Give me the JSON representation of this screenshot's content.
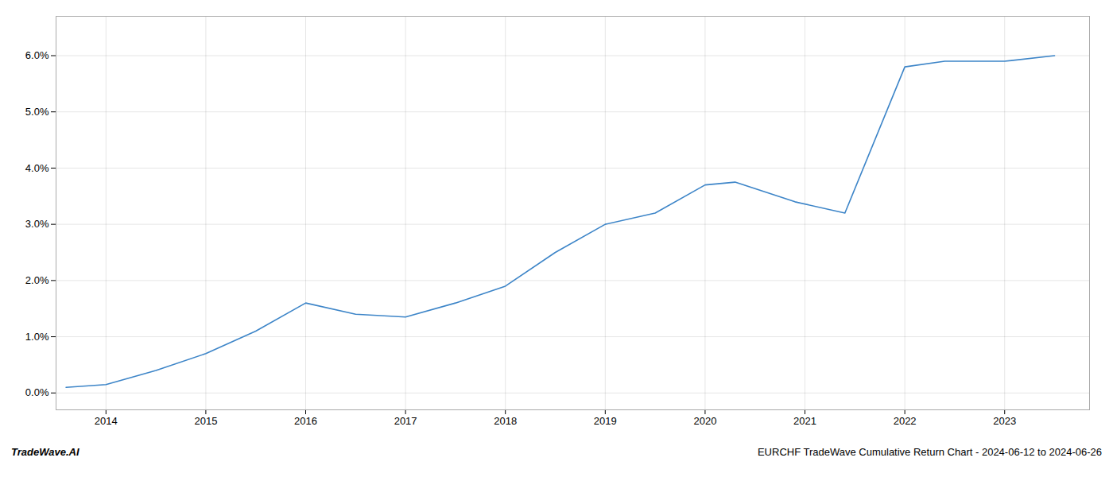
{
  "chart_data": {
    "type": "line",
    "x": [
      2013.6,
      2014.0,
      2014.5,
      2015.0,
      2015.5,
      2016.0,
      2016.5,
      2017.0,
      2017.5,
      2018.0,
      2018.5,
      2019.0,
      2019.5,
      2020.0,
      2020.3,
      2020.9,
      2021.4,
      2022.0,
      2022.4,
      2023.0,
      2023.5
    ],
    "values": [
      0.001,
      0.0015,
      0.004,
      0.007,
      0.011,
      0.016,
      0.014,
      0.0135,
      0.016,
      0.019,
      0.025,
      0.03,
      0.032,
      0.037,
      0.0375,
      0.034,
      0.032,
      0.058,
      0.059,
      0.059,
      0.06
    ],
    "color": "#3d85c8",
    "xlim": [
      2013.5,
      2023.85
    ],
    "xticks": [
      2014,
      2015,
      2016,
      2017,
      2018,
      2019,
      2020,
      2021,
      2022,
      2023
    ],
    "ylim": [
      -0.003,
      0.067
    ],
    "yticks": [
      {
        "value": 0.0,
        "label": "0.0%"
      },
      {
        "value": 0.01,
        "label": "1.0%"
      },
      {
        "value": 0.02,
        "label": "2.0%"
      },
      {
        "value": 0.03,
        "label": "3.0%"
      },
      {
        "value": 0.04,
        "label": "4.0%"
      },
      {
        "value": 0.05,
        "label": "5.0%"
      },
      {
        "value": 0.06,
        "label": "6.0%"
      }
    ],
    "grid": true,
    "annotations": [
      "TradeWave.AI",
      "EURCHF TradeWave Cumulative Return Chart - 2024-06-12 to 2024-06-26"
    ]
  }
}
